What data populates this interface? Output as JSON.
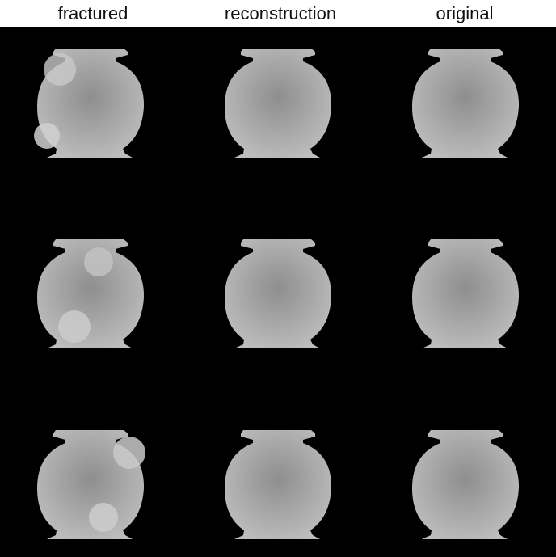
{
  "columns": [
    {
      "label": "fractured"
    },
    {
      "label": "reconstruction"
    },
    {
      "label": "original"
    }
  ],
  "colors": {
    "background": "#000000",
    "vase_base": "#a6a6a6",
    "fracture_patch": "#c9c9c9"
  }
}
